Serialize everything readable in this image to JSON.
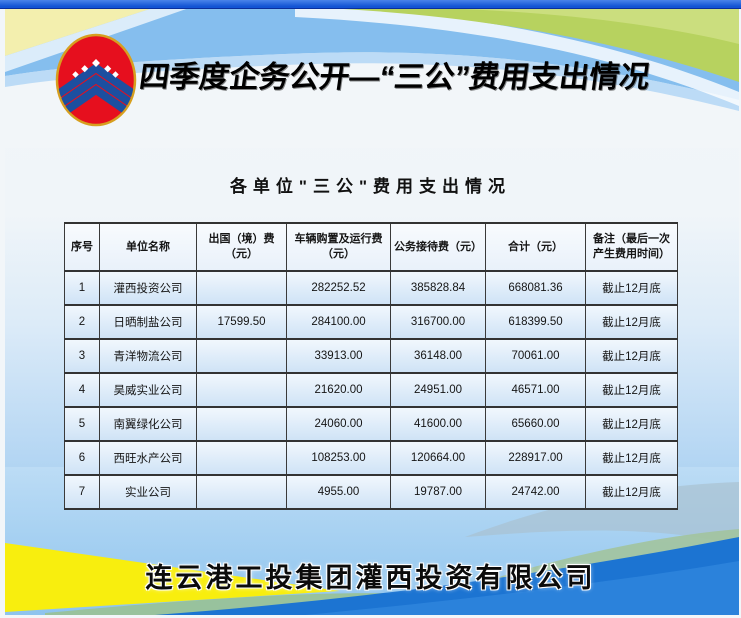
{
  "header": {
    "title": "四季度企务公开—“三公”费用支出情况"
  },
  "subtitle": "各单位\"三公\"费用支出情况",
  "table": {
    "columns": [
      "序号",
      "单位名称",
      "出国（境）费（元）",
      "车辆购置及运行费（元）",
      "公务接待费（元）",
      "合计（元）",
      "备注（最后一次产生费用时间）"
    ],
    "rows": [
      [
        "1",
        "灌西投资公司",
        "",
        "282252.52",
        "385828.84",
        "668081.36",
        "截止12月底"
      ],
      [
        "2",
        "日晒制盐公司",
        "17599.50",
        "284100.00",
        "316700.00",
        "618399.50",
        "截止12月底"
      ],
      [
        "3",
        "青洋物流公司",
        "",
        "33913.00",
        "36148.00",
        "70061.00",
        "截止12月底"
      ],
      [
        "4",
        "昊威实业公司",
        "",
        "21620.00",
        "24951.00",
        "46571.00",
        "截止12月底"
      ],
      [
        "5",
        "南翼绿化公司",
        "",
        "24060.00",
        "41600.00",
        "65660.00",
        "截止12月底"
      ],
      [
        "6",
        "西旺水产公司",
        "",
        "108253.00",
        "120664.00",
        "228917.00",
        "截止12月底"
      ],
      [
        "7",
        "实业公司",
        "",
        "4955.00",
        "19787.00",
        "24742.00",
        "截止12月底"
      ]
    ]
  },
  "footer": {
    "company": "连云港工投集团灌西投资有限公司"
  },
  "colors": {
    "top_bar_blue": "#1354d4",
    "sky_blue": "#85beee",
    "leaf_green": "#b7d25f",
    "pale_yellow": "#f3efae",
    "bottom_wave_blue": "#1c74d2",
    "accent_yellow": "#f8ee0e",
    "muted_green": "#a2c4a1",
    "logo_red": "#e60f1e",
    "logo_ring_gold": "#d79f1f",
    "logo_blue": "#1c4fa0"
  }
}
